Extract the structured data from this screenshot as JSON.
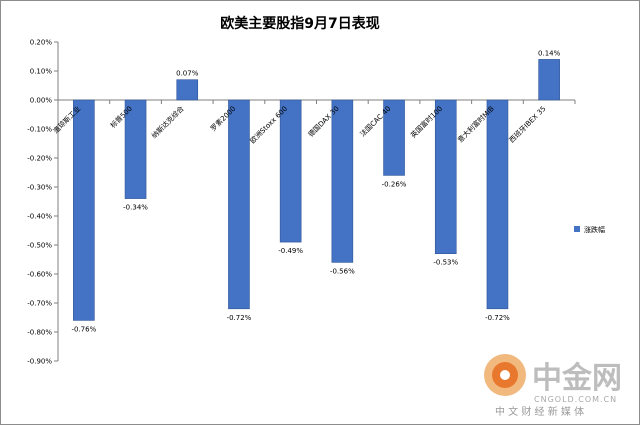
{
  "chart_data": {
    "type": "bar",
    "title": "欧美主要股指9月7日表现",
    "categories": [
      "道琼斯工业",
      "标普500",
      "纳斯达克综合",
      "罗素2000",
      "欧洲Stoxx 600",
      "德国DAX 30",
      "法国CAC 40",
      "英国富时100",
      "意大利富时MIB",
      "西班牙IBEX 35"
    ],
    "series": [
      {
        "name": "涨跌幅",
        "values": [
          -0.76,
          -0.34,
          0.07,
          -0.72,
          -0.49,
          -0.56,
          -0.26,
          -0.53,
          -0.72,
          0.14
        ],
        "data_labels": [
          "-0.76%",
          "-0.34%",
          "0.07%",
          "-0.72%",
          "-0.49%",
          "-0.56%",
          "-0.26%",
          "-0.53%",
          "-0.72%",
          "0.14%"
        ]
      }
    ],
    "ylim": [
      -0.9,
      0.2
    ],
    "yticks": [
      "0.20%",
      "0.10%",
      "0.00%",
      "-0.10%",
      "-0.20%",
      "-0.30%",
      "-0.40%",
      "-0.50%",
      "-0.60%",
      "-0.70%",
      "-0.80%",
      "-0.90%"
    ],
    "ytick_values": [
      0.2,
      0.1,
      0.0,
      -0.1,
      -0.2,
      -0.3,
      -0.4,
      -0.5,
      -0.6,
      -0.7,
      -0.8,
      -0.9
    ],
    "xlabel": "",
    "ylabel": "",
    "grid": false,
    "legend": {
      "position": "right",
      "entries": [
        "涨跌幅"
      ]
    },
    "colors": {
      "bar": "#4472c4",
      "bar_edge": "#2f5597",
      "axis": "#7f7f7f",
      "text": "#000000"
    }
  },
  "watermark": {
    "brand": "中金网",
    "url": "CNGOLD.COM.CN",
    "slogan": "中 文 财 经 新 媒 体",
    "colors": {
      "logo_outer": "#f2b97f",
      "logo_inner": "#e9782f"
    }
  }
}
